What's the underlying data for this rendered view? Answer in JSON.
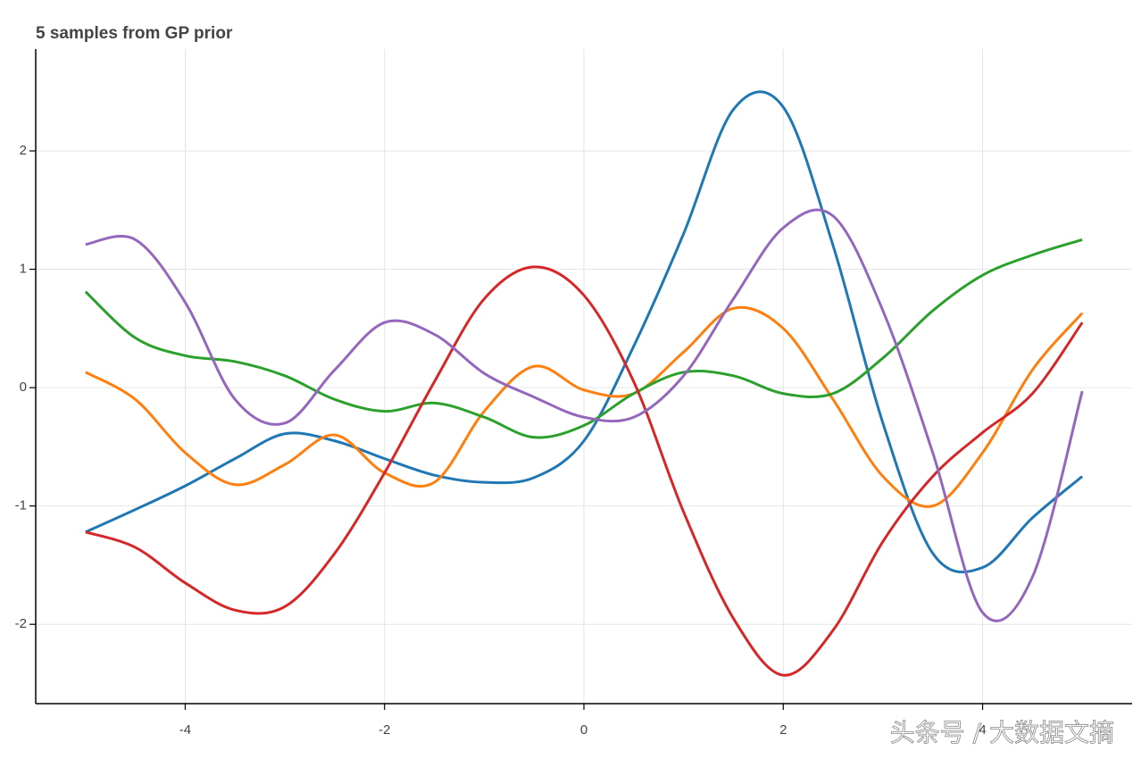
{
  "chart_data": {
    "type": "line",
    "title": "5 samples from GP prior",
    "x": [
      -5,
      -4.5,
      -4,
      -3.5,
      -3,
      -2.5,
      -2,
      -1.5,
      -1,
      -0.5,
      0,
      0.5,
      1,
      1.5,
      2,
      2.5,
      3,
      3.5,
      4,
      4.5,
      5
    ],
    "series": [
      {
        "color": "#1f77b4",
        "values": [
          -1.22,
          -1.03,
          -0.83,
          -0.6,
          -0.39,
          -0.45,
          -0.6,
          -0.74,
          -0.8,
          -0.76,
          -0.45,
          0.35,
          1.3,
          2.35,
          2.37,
          1.2,
          -0.3,
          -1.4,
          -1.52,
          -1.1,
          -0.75
        ]
      },
      {
        "color": "#ff7f0e",
        "values": [
          0.13,
          -0.1,
          -0.55,
          -0.82,
          -0.65,
          -0.4,
          -0.72,
          -0.8,
          -0.2,
          0.18,
          -0.02,
          -0.05,
          0.3,
          0.67,
          0.5,
          -0.1,
          -0.75,
          -1.0,
          -0.55,
          0.15,
          0.63
        ]
      },
      {
        "color": "#2ca02c",
        "values": [
          0.81,
          0.42,
          0.27,
          0.22,
          0.1,
          -0.1,
          -0.2,
          -0.13,
          -0.25,
          -0.42,
          -0.32,
          -0.05,
          0.13,
          0.1,
          -0.05,
          -0.05,
          0.25,
          0.65,
          0.95,
          1.12,
          1.25
        ]
      },
      {
        "color": "#d62728",
        "values": [
          -1.22,
          -1.35,
          -1.65,
          -1.88,
          -1.85,
          -1.4,
          -0.72,
          0.05,
          0.75,
          1.02,
          0.78,
          0.05,
          -1.05,
          -1.95,
          -2.43,
          -2.05,
          -1.3,
          -0.75,
          -0.38,
          -0.05,
          0.55
        ]
      },
      {
        "color": "#9467bd",
        "values": [
          1.21,
          1.25,
          0.72,
          -0.1,
          -0.3,
          0.15,
          0.55,
          0.45,
          0.12,
          -0.08,
          -0.25,
          -0.25,
          0.1,
          0.75,
          1.35,
          1.45,
          0.65,
          -0.55,
          -1.9,
          -1.6,
          -0.03
        ]
      }
    ],
    "xlim": [
      -5.5,
      5.5
    ],
    "xticks": [
      -4,
      -2,
      0,
      2,
      4
    ],
    "ylim": [
      -2.67,
      2.86
    ],
    "yticks": [
      -2,
      -1,
      0,
      1,
      2
    ],
    "grid": true
  },
  "watermark": "头条号 / 大数据文摘"
}
